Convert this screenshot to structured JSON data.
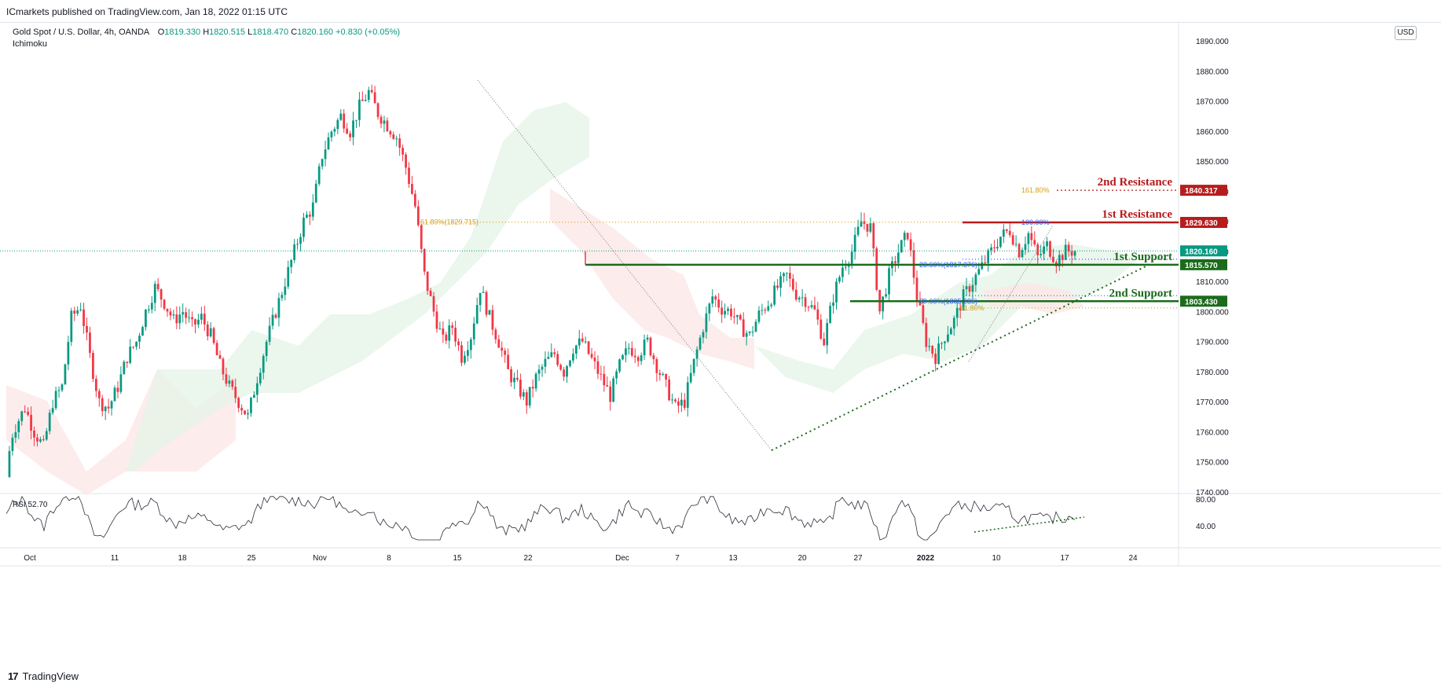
{
  "header": {
    "published": "ICmarkets published on TradingView.com, Jan 18, 2022 01:15 UTC",
    "symbol": "Gold Spot / U.S. Dollar, 4h, OANDA",
    "ohlc": {
      "o_label": "O",
      "o": "1819.330",
      "h_label": "H",
      "h": "1820.515",
      "l_label": "L",
      "l": "1818.470",
      "c_label": "C",
      "c": "1820.160",
      "change": "+0.830 (+0.05%)"
    },
    "indicator": "Ichimoku",
    "currency": "USD"
  },
  "footer": {
    "brand": "TradingView"
  },
  "colors": {
    "up": "#089981",
    "down": "#f23645",
    "support": "#1b6b1b",
    "resistance": "#b71c1c",
    "fib": "#d4a017",
    "fib_blue": "#2962ff",
    "cloud_green": "#e6f4e7",
    "cloud_red": "#fde7e7"
  },
  "chart_data": {
    "type": "candlestick",
    "title": "Gold Spot / U.S. Dollar, 4h, OANDA",
    "price_axis": {
      "min": 1740,
      "max": 1890,
      "ticks": [
        "1890.000",
        "1880.000",
        "1870.000",
        "1860.000",
        "1850.000",
        "1840.000",
        "1830.000",
        "1820.000",
        "1810.000",
        "1800.000",
        "1790.000",
        "1780.000",
        "1770.000",
        "1760.000",
        "1750.000",
        "1740.000"
      ]
    },
    "time_axis": {
      "labels": [
        "Oct",
        "11",
        "18",
        "25",
        "Nov",
        "8",
        "15",
        "22",
        "Dec",
        "7",
        "13",
        "20",
        "27",
        "2022",
        "10",
        "17",
        "24"
      ]
    },
    "price_path": [
      [
        0,
        1745
      ],
      [
        0.5,
        1758
      ],
      [
        1,
        1762
      ],
      [
        2,
        1768
      ],
      [
        3,
        1760
      ],
      [
        4,
        1755
      ],
      [
        5,
        1770
      ],
      [
        6,
        1775
      ],
      [
        7,
        1798
      ],
      [
        8,
        1802
      ],
      [
        9,
        1785
      ],
      [
        10,
        1770
      ],
      [
        11,
        1768
      ],
      [
        12,
        1775
      ],
      [
        13,
        1785
      ],
      [
        14,
        1790
      ],
      [
        15,
        1800
      ],
      [
        16,
        1808
      ],
      [
        17,
        1803
      ],
      [
        18,
        1797
      ],
      [
        19,
        1800
      ],
      [
        20,
        1795
      ],
      [
        21,
        1798
      ],
      [
        22,
        1792
      ],
      [
        23,
        1782
      ],
      [
        24,
        1775
      ],
      [
        25,
        1770
      ],
      [
        26,
        1765
      ],
      [
        27,
        1778
      ],
      [
        28,
        1790
      ],
      [
        29,
        1800
      ],
      [
        30,
        1810
      ],
      [
        31,
        1820
      ],
      [
        32,
        1830
      ],
      [
        33,
        1835
      ],
      [
        34,
        1852
      ],
      [
        35,
        1860
      ],
      [
        36,
        1865
      ],
      [
        37,
        1860
      ],
      [
        38,
        1868
      ],
      [
        39,
        1873
      ],
      [
        40,
        1866
      ],
      [
        41,
        1862
      ],
      [
        42,
        1858
      ],
      [
        43,
        1848
      ],
      [
        44,
        1835
      ],
      [
        45,
        1812
      ],
      [
        46,
        1800
      ],
      [
        47,
        1790
      ],
      [
        48,
        1795
      ],
      [
        49,
        1785
      ],
      [
        50,
        1792
      ],
      [
        51,
        1808
      ],
      [
        52,
        1798
      ],
      [
        53,
        1790
      ],
      [
        54,
        1780
      ],
      [
        55,
        1775
      ],
      [
        56,
        1770
      ],
      [
        57,
        1778
      ],
      [
        58,
        1783
      ],
      [
        59,
        1786
      ],
      [
        60,
        1780
      ],
      [
        61,
        1788
      ],
      [
        62,
        1790
      ],
      [
        63,
        1784
      ],
      [
        64,
        1778
      ],
      [
        65,
        1772
      ],
      [
        66,
        1782
      ],
      [
        67,
        1788
      ],
      [
        68,
        1786
      ],
      [
        69,
        1790
      ],
      [
        70,
        1782
      ],
      [
        71,
        1775
      ],
      [
        72,
        1768
      ],
      [
        73,
        1770
      ],
      [
        74,
        1783
      ],
      [
        75,
        1795
      ],
      [
        76,
        1805
      ],
      [
        77,
        1801
      ],
      [
        78,
        1800
      ],
      [
        79,
        1795
      ],
      [
        80,
        1792
      ],
      [
        81,
        1799
      ],
      [
        82,
        1803
      ],
      [
        83,
        1808
      ],
      [
        84,
        1812
      ],
      [
        85,
        1806
      ],
      [
        86,
        1804
      ],
      [
        87,
        1800
      ],
      [
        88,
        1790
      ],
      [
        89,
        1805
      ],
      [
        90,
        1815
      ],
      [
        91,
        1820
      ],
      [
        92,
        1830
      ],
      [
        93,
        1828
      ],
      [
        94,
        1800
      ],
      [
        95,
        1812
      ],
      [
        96,
        1820
      ],
      [
        97,
        1826
      ],
      [
        98,
        1805
      ],
      [
        99,
        1790
      ],
      [
        100,
        1785
      ],
      [
        101,
        1792
      ],
      [
        102,
        1797
      ],
      [
        103,
        1805
      ],
      [
        104,
        1810
      ],
      [
        105,
        1815
      ],
      [
        106,
        1820
      ],
      [
        107,
        1825
      ],
      [
        108,
        1827
      ],
      [
        109,
        1820
      ],
      [
        110,
        1826
      ],
      [
        111,
        1818
      ],
      [
        112,
        1822
      ],
      [
        113,
        1817
      ],
      [
        114,
        1820
      ],
      [
        115,
        1820.16
      ]
    ],
    "current_price": "1820.160",
    "levels": [
      {
        "name": "2nd Resistance",
        "value": "1840.317",
        "kind": "resistance",
        "fib_label": "161.80%"
      },
      {
        "name": "1st Resistance",
        "value": "1829.630",
        "kind": "resistance",
        "fib_label": "100.00%"
      },
      {
        "name": "1st Support",
        "value": "1815.570",
        "kind": "support",
        "fib_label": "23.60%(1817.376)"
      },
      {
        "name": "2nd Support",
        "value": "1803.430",
        "kind": "support",
        "fib_label": "50.00%(1805.285)"
      }
    ],
    "fib_extra": {
      "label_61": "61.80%",
      "label_left": "61.80%(1829.715)"
    },
    "rsi": {
      "label": "RSI",
      "value": "52.70",
      "ticks": [
        "80.00",
        "40.00"
      ]
    }
  }
}
